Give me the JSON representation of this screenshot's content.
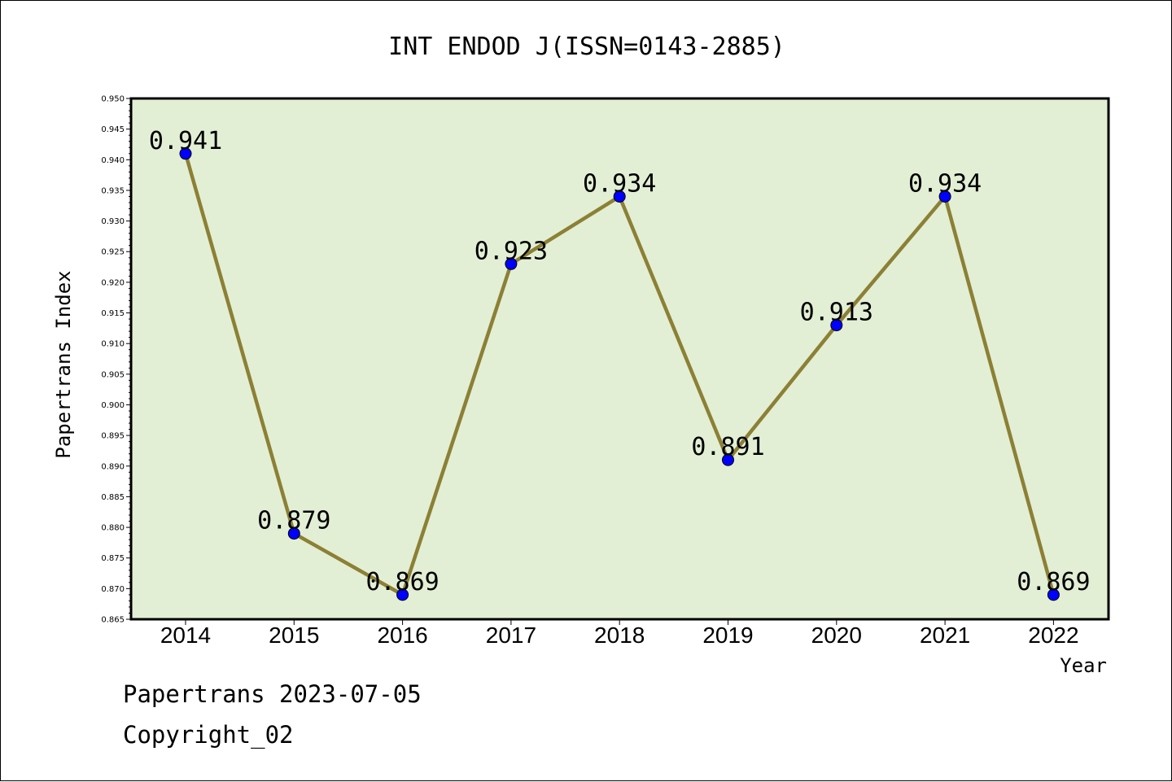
{
  "chart_data": {
    "type": "line",
    "title": "INT ENDOD J(ISSN=0143-2885)",
    "xlabel": "Year",
    "ylabel": "Papertrans Index",
    "categories": [
      "2014",
      "2015",
      "2016",
      "2017",
      "2018",
      "2019",
      "2020",
      "2021",
      "2022"
    ],
    "series": [
      {
        "values": [
          0.941,
          0.879,
          0.869,
          0.923,
          0.934,
          0.891,
          0.913,
          0.934,
          0.869
        ]
      }
    ],
    "data_labels": [
      "0.941",
      "0.879",
      "0.869",
      "0.923",
      "0.934",
      "0.891",
      "0.913",
      "0.934",
      "0.869"
    ],
    "ylim": [
      0.865,
      0.95
    ],
    "yticks": [
      "0.865",
      "0.870",
      "0.875",
      "0.880",
      "0.885",
      "0.890",
      "0.895",
      "0.900",
      "0.905",
      "0.910",
      "0.915",
      "0.920",
      "0.925",
      "0.930",
      "0.935",
      "0.940",
      "0.945",
      "0.950"
    ],
    "grid": false,
    "legend": "none",
    "colors": {
      "plot_background": "#e2efd5",
      "line": "#8c8035",
      "marker": "#0000ff"
    }
  },
  "footer": {
    "line1": "Papertrans 2023-07-05",
    "line2": "Copyright_02"
  }
}
